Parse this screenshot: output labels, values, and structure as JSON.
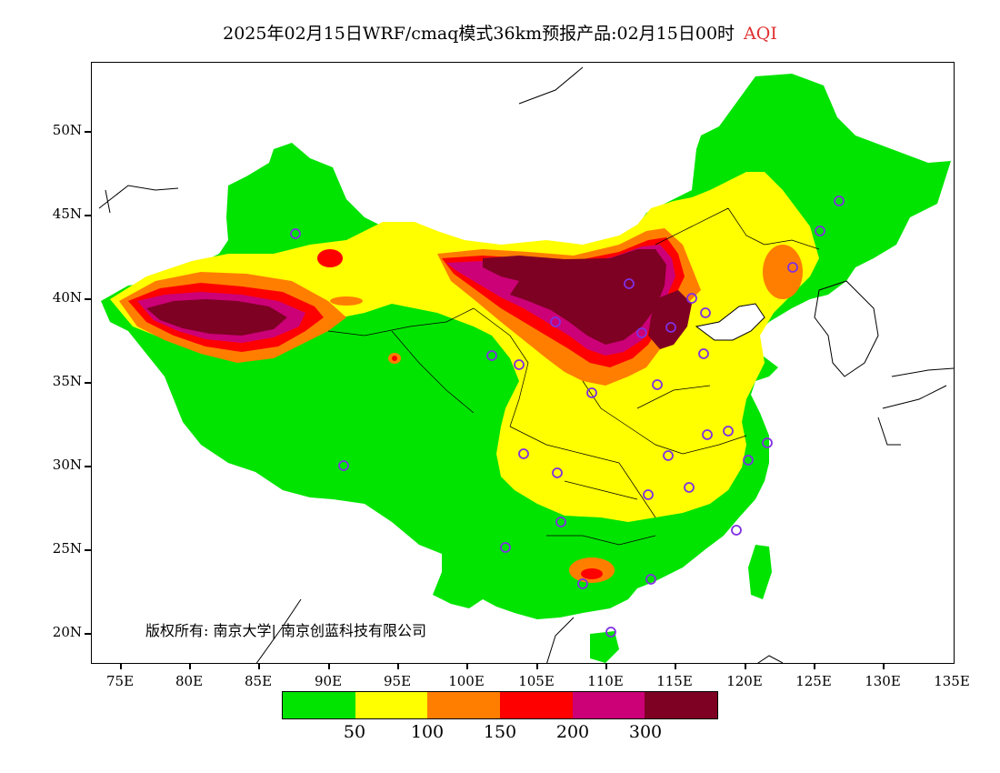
{
  "title": {
    "main": "2025年02月15日WRF/cmaq模式36km预报产品:02月15日00时",
    "aqi": "AQI"
  },
  "axes": {
    "y_labels": [
      "50N",
      "45N",
      "40N",
      "35N",
      "30N",
      "25N",
      "20N"
    ],
    "x_labels": [
      "75E",
      "80E",
      "85E",
      "90E",
      "95E",
      "100E",
      "105E",
      "110E",
      "115E",
      "120E",
      "125E",
      "130E",
      "135E"
    ]
  },
  "copyright": "版权所有: 南京大学| 南京创蓝科技有限公司",
  "legend": {
    "colors": [
      "#00e400",
      "#ffff00",
      "#ff7e00",
      "#ff0000",
      "#cc0077",
      "#7e0023"
    ],
    "labels": [
      "50",
      "100",
      "150",
      "200",
      "300"
    ]
  }
}
